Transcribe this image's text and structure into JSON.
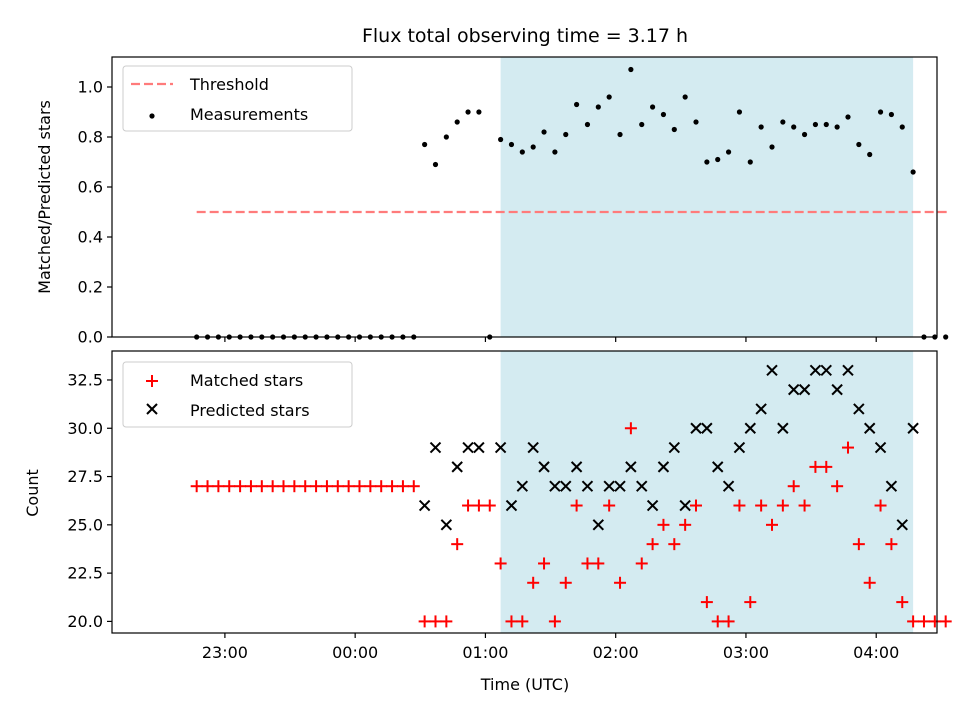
{
  "chart_data": [
    {
      "type": "scatter",
      "title": "Flux total observing time = 3.17 h",
      "xlabel": "",
      "ylabel": "Matched/Predicted stars",
      "ylim": [
        0.0,
        1.12
      ],
      "yticks": [
        0.0,
        0.2,
        0.4,
        0.6,
        0.8,
        1.0
      ],
      "ytick_labels": [
        "0.0",
        "0.2",
        "0.4",
        "0.6",
        "0.8",
        "1.0"
      ],
      "legend_position": "top-left",
      "shaded_span": {
        "start": "01:07",
        "end": "04:17",
        "color": "#d4ebf1"
      },
      "threshold": {
        "name": "Threshold",
        "value": 0.5,
        "x_start": "22:47",
        "x_end": "04:33",
        "color": "#ff7b7b"
      },
      "series": [
        {
          "name": "Measurements",
          "color": "#000000",
          "x": [
            "22:47",
            "22:52",
            "22:57",
            "23:02",
            "23:07",
            "23:12",
            "23:17",
            "23:22",
            "23:27",
            "23:32",
            "23:37",
            "23:42",
            "23:47",
            "23:52",
            "23:57",
            "00:02",
            "00:07",
            "00:12",
            "00:17",
            "00:22",
            "00:27",
            "00:32",
            "00:37",
            "00:42",
            "00:47",
            "00:52",
            "00:57",
            "01:02",
            "01:07",
            "01:12",
            "01:17",
            "01:22",
            "01:27",
            "01:32",
            "01:37",
            "01:42",
            "01:47",
            "01:52",
            "01:57",
            "02:02",
            "02:07",
            "02:12",
            "02:17",
            "02:22",
            "02:27",
            "02:32",
            "02:37",
            "02:42",
            "02:47",
            "02:52",
            "02:57",
            "03:02",
            "03:07",
            "03:12",
            "03:17",
            "03:22",
            "03:27",
            "03:32",
            "03:37",
            "03:42",
            "03:47",
            "03:52",
            "03:57",
            "04:02",
            "04:07",
            "04:12",
            "04:17",
            "04:22",
            "04:27",
            "04:32"
          ],
          "y": [
            0,
            0,
            0,
            0,
            0,
            0,
            0,
            0,
            0,
            0,
            0,
            0,
            0,
            0,
            0,
            0,
            0,
            0,
            0,
            0,
            0,
            0.77,
            0.69,
            0.8,
            0.86,
            0.9,
            0.9,
            0,
            0.79,
            0.77,
            0.74,
            0.76,
            0.82,
            0.74,
            0.81,
            0.93,
            0.85,
            0.92,
            0.96,
            0.81,
            1.07,
            0.85,
            0.92,
            0.89,
            0.83,
            0.96,
            0.86,
            0.7,
            0.71,
            0.74,
            0.9,
            0.7,
            0.84,
            0.76,
            0.86,
            0.84,
            0.81,
            0.85,
            0.85,
            0.84,
            0.88,
            0.77,
            0.73,
            0.9,
            0.89,
            0.84,
            0.66,
            0,
            0,
            0
          ]
        }
      ]
    },
    {
      "type": "scatter",
      "title": "",
      "xlabel": "Time (UTC)",
      "ylabel": "Count",
      "ylim": [
        19.4,
        34.0
      ],
      "yticks": [
        20.0,
        22.5,
        25.0,
        27.5,
        30.0,
        32.5
      ],
      "ytick_labels": [
        "20.0",
        "22.5",
        "25.0",
        "27.5",
        "30.0",
        "32.5"
      ],
      "xticks": [
        "23:00",
        "00:00",
        "01:00",
        "02:00",
        "03:00",
        "04:00"
      ],
      "xtick_minutes": [
        1380,
        1440,
        1500,
        1560,
        1620,
        1680
      ],
      "legend_position": "top-left",
      "shaded_span": {
        "start": "01:07",
        "end": "04:17",
        "color": "#d4ebf1"
      },
      "series": [
        {
          "name": "Matched stars",
          "marker": "plus",
          "color": "#ff0000",
          "x": [
            "22:47",
            "22:52",
            "22:57",
            "23:02",
            "23:07",
            "23:12",
            "23:17",
            "23:22",
            "23:27",
            "23:32",
            "23:37",
            "23:42",
            "23:47",
            "23:52",
            "23:57",
            "00:02",
            "00:07",
            "00:12",
            "00:17",
            "00:22",
            "00:27",
            "00:32",
            "00:37",
            "00:42",
            "00:47",
            "00:52",
            "00:57",
            "01:02",
            "01:07",
            "01:12",
            "01:17",
            "01:22",
            "01:27",
            "01:32",
            "01:37",
            "01:42",
            "01:47",
            "01:52",
            "01:57",
            "02:02",
            "02:07",
            "02:12",
            "02:17",
            "02:22",
            "02:27",
            "02:32",
            "02:37",
            "02:42",
            "02:47",
            "02:52",
            "02:57",
            "03:02",
            "03:07",
            "03:12",
            "03:17",
            "03:22",
            "03:27",
            "03:32",
            "03:37",
            "03:42",
            "03:47",
            "03:52",
            "03:57",
            "04:02",
            "04:07",
            "04:12",
            "04:17",
            "04:22",
            "04:27",
            "04:32"
          ],
          "y": [
            27,
            27,
            27,
            27,
            27,
            27,
            27,
            27,
            27,
            27,
            27,
            27,
            27,
            27,
            27,
            27,
            27,
            27,
            27,
            27,
            27,
            20,
            20,
            20,
            24,
            26,
            26,
            26,
            23,
            20,
            20,
            22,
            23,
            20,
            22,
            26,
            23,
            23,
            26,
            22,
            30,
            23,
            24,
            25,
            24,
            25,
            26,
            21,
            20,
            20,
            26,
            21,
            26,
            25,
            26,
            27,
            26,
            28,
            28,
            27,
            29,
            24,
            22,
            26,
            24,
            21,
            20,
            20,
            20,
            20
          ]
        },
        {
          "name": "Predicted stars",
          "marker": "cross",
          "color": "#000000",
          "x": [
            "00:32",
            "00:37",
            "00:42",
            "00:47",
            "00:52",
            "00:57",
            "01:07",
            "01:12",
            "01:17",
            "01:22",
            "01:27",
            "01:32",
            "01:37",
            "01:42",
            "01:47",
            "01:52",
            "01:57",
            "02:02",
            "02:07",
            "02:12",
            "02:17",
            "02:22",
            "02:27",
            "02:32",
            "02:37",
            "02:42",
            "02:47",
            "02:52",
            "02:57",
            "03:02",
            "03:07",
            "03:12",
            "03:17",
            "03:22",
            "03:27",
            "03:32",
            "03:37",
            "03:42",
            "03:47",
            "03:52",
            "03:57",
            "04:02",
            "04:07",
            "04:12",
            "04:17"
          ],
          "y": [
            26,
            29,
            25,
            28,
            29,
            29,
            29,
            26,
            27,
            29,
            28,
            27,
            27,
            28,
            27,
            25,
            27,
            27,
            28,
            27,
            26,
            28,
            29,
            26,
            30,
            30,
            28,
            27,
            29,
            30,
            31,
            33,
            30,
            32,
            32,
            33,
            33,
            32,
            33,
            31,
            30,
            29,
            27,
            25,
            30
          ]
        }
      ]
    }
  ]
}
